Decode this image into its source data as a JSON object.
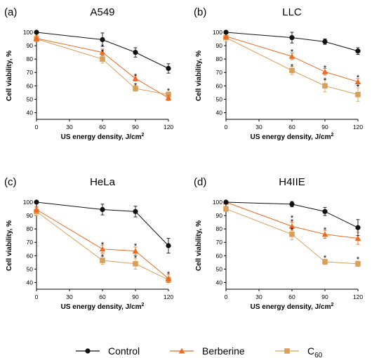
{
  "legend": {
    "items": [
      {
        "label": "Control",
        "sub": "",
        "color": "#111111",
        "marker": "circle"
      },
      {
        "label": "Berberine",
        "sub": "",
        "color": "#ef6a1f",
        "marker": "triangle"
      },
      {
        "label": "C",
        "sub": "60",
        "color": "#d9a05a",
        "marker": "square"
      }
    ]
  },
  "chart_data": [
    {
      "type": "line",
      "panel_letter": "(a)",
      "title": "A549",
      "xlabel": "US energy density, J/cm",
      "xlabel_sup": "2",
      "ylabel": "Cell viability, %",
      "x": [
        0,
        60,
        90,
        120
      ],
      "xticks": [
        "0",
        "30",
        "60",
        "90",
        "120"
      ],
      "xlim": [
        0,
        120
      ],
      "ylim": [
        35,
        100
      ],
      "yticks": [
        "40",
        "50",
        "60",
        "70",
        "80",
        "90",
        "100"
      ],
      "series": [
        {
          "name": "Control",
          "values": [
            100,
            94.5,
            85,
            73
          ],
          "errors": [
            0,
            5,
            3.5,
            3.5
          ]
        },
        {
          "name": "Berberine",
          "values": [
            95.5,
            85,
            65.5,
            51
          ],
          "errors": [
            2,
            2.5,
            2,
            2
          ]
        },
        {
          "name": "C60",
          "values": [
            95,
            80,
            58,
            53.5
          ],
          "errors": [
            2,
            3,
            2,
            2
          ]
        }
      ],
      "annotations": [
        {
          "x": 60,
          "y": 90,
          "text": "*"
        },
        {
          "x": 60,
          "y": 86,
          "text": "*"
        },
        {
          "x": 90,
          "y": 68,
          "text": "*"
        },
        {
          "x": 90,
          "y": 61,
          "text": "*"
        },
        {
          "x": 120,
          "y": 57,
          "text": "*"
        }
      ]
    },
    {
      "type": "line",
      "panel_letter": "(b)",
      "title": "LLC",
      "xlabel": "US energy density, J/cm",
      "xlabel_sup": "2",
      "ylabel": "Cell viability, %",
      "x": [
        0,
        60,
        90,
        120
      ],
      "xticks": [
        "0",
        "30",
        "60",
        "90",
        "120"
      ],
      "xlim": [
        0,
        120
      ],
      "ylim": [
        35,
        100
      ],
      "yticks": [
        "40",
        "50",
        "60",
        "70",
        "80",
        "90",
        "100"
      ],
      "series": [
        {
          "name": "Control",
          "values": [
            100,
            96,
            93,
            86
          ],
          "errors": [
            0,
            4,
            2,
            2.5
          ]
        },
        {
          "name": "Berberine",
          "values": [
            97,
            82,
            70.5,
            63
          ],
          "errors": [
            2,
            2.5,
            2.5,
            2.5
          ]
        },
        {
          "name": "C60",
          "values": [
            96,
            71.5,
            60,
            53.5
          ],
          "errors": [
            3,
            3,
            4.5,
            5
          ]
        }
      ],
      "annotations": [
        {
          "x": 60,
          "y": 86,
          "text": "*"
        },
        {
          "x": 60,
          "y": 75,
          "text": "*"
        },
        {
          "x": 90,
          "y": 74,
          "text": "*"
        },
        {
          "x": 90,
          "y": 65,
          "text": "*"
        },
        {
          "x": 120,
          "y": 67,
          "text": "*"
        },
        {
          "x": 120,
          "y": 60,
          "text": "*"
        }
      ]
    },
    {
      "type": "line",
      "panel_letter": "(c)",
      "title": "HeLa",
      "xlabel": "US energy density, J/cm",
      "xlabel_sup": "2",
      "ylabel": "Cell viability, %",
      "x": [
        0,
        60,
        90,
        120
      ],
      "xticks": [
        "0",
        "30",
        "60",
        "90",
        "120"
      ],
      "xlim": [
        0,
        120
      ],
      "ylim": [
        35,
        100
      ],
      "yticks": [
        "40",
        "50",
        "60",
        "70",
        "80",
        "90",
        "100"
      ],
      "series": [
        {
          "name": "Control",
          "values": [
            100,
            94.5,
            93,
            67.5
          ],
          "errors": [
            0,
            4,
            4,
            5.5
          ]
        },
        {
          "name": "Berberine",
          "values": [
            94.5,
            65,
            63.5,
            43
          ],
          "errors": [
            2,
            3,
            3,
            3
          ]
        },
        {
          "name": "C60",
          "values": [
            93,
            56.5,
            54,
            42
          ],
          "errors": [
            3,
            3,
            4,
            2
          ]
        }
      ],
      "annotations": [
        {
          "x": 60,
          "y": 69,
          "text": "*"
        },
        {
          "x": 60,
          "y": 60,
          "text": "*"
        },
        {
          "x": 90,
          "y": 68,
          "text": "*"
        },
        {
          "x": 90,
          "y": 59,
          "text": "*"
        },
        {
          "x": 120,
          "y": 47,
          "text": "*"
        }
      ]
    },
    {
      "type": "line",
      "panel_letter": "(d)",
      "title": "H4IIE",
      "xlabel": "US energy density, J/cm",
      "xlabel_sup": "2",
      "ylabel": "Cell viability, %",
      "x": [
        0,
        60,
        90,
        120
      ],
      "xticks": [
        "0",
        "30",
        "60",
        "90",
        "120"
      ],
      "xlim": [
        0,
        120
      ],
      "ylim": [
        35,
        100
      ],
      "yticks": [
        "40",
        "50",
        "60",
        "70",
        "80",
        "90",
        "100"
      ],
      "series": [
        {
          "name": "Control",
          "values": [
            100,
            98.5,
            93,
            81
          ],
          "errors": [
            0,
            2,
            3,
            6
          ]
        },
        {
          "name": "Berberine",
          "values": [
            100,
            82,
            76,
            73
          ],
          "errors": [
            0,
            3,
            3,
            4.5
          ]
        },
        {
          "name": "C60",
          "values": [
            95,
            76,
            55.5,
            54
          ],
          "errors": [
            2,
            4,
            2,
            2
          ]
        }
      ],
      "annotations": [
        {
          "x": 60,
          "y": 89,
          "text": "*"
        },
        {
          "x": 60,
          "y": 86,
          "text": "*"
        },
        {
          "x": 60,
          "y": 80,
          "text": "*"
        },
        {
          "x": 90,
          "y": 80,
          "text": "*"
        },
        {
          "x": 90,
          "y": 59,
          "text": "*"
        },
        {
          "x": 120,
          "y": 58,
          "text": "*"
        }
      ]
    }
  ]
}
